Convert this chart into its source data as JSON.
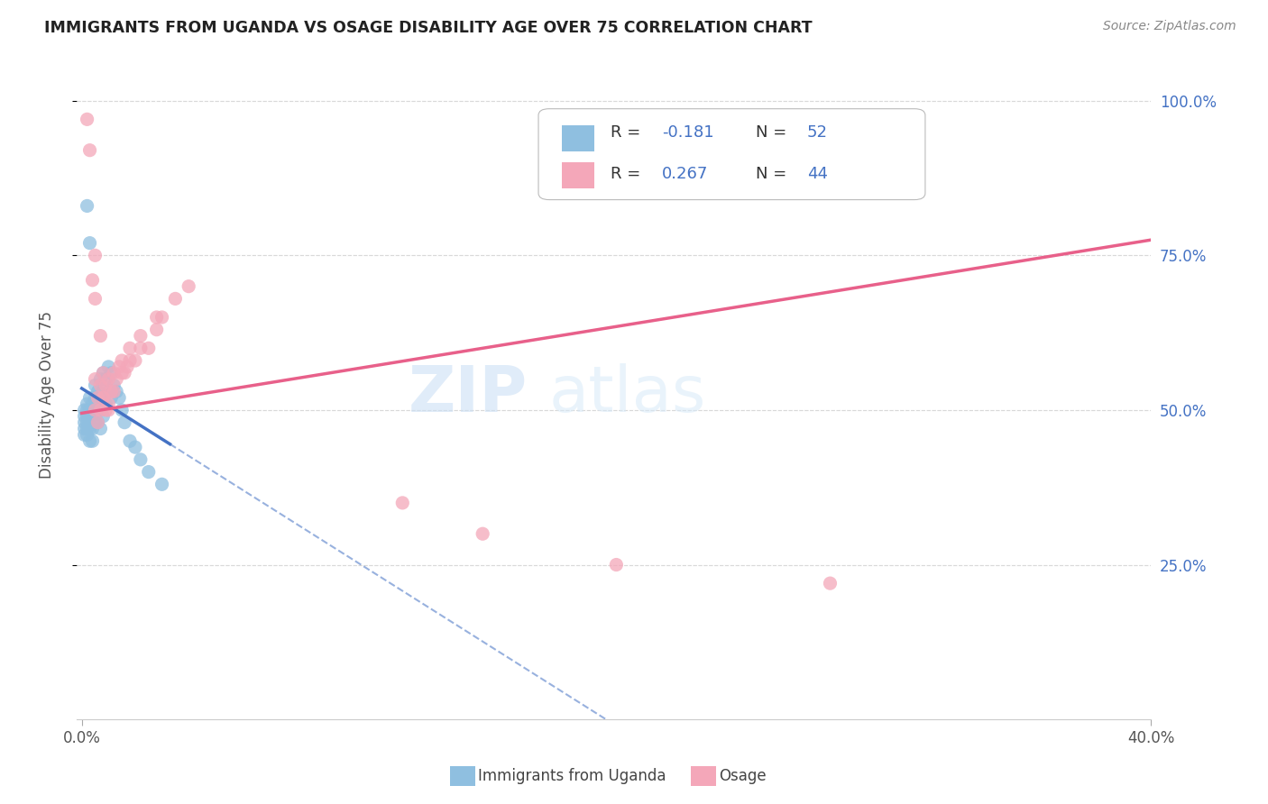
{
  "title": "IMMIGRANTS FROM UGANDA VS OSAGE DISABILITY AGE OVER 75 CORRELATION CHART",
  "source": "Source: ZipAtlas.com",
  "ylabel": "Disability Age Over 75",
  "legend_label1": "Immigrants from Uganda",
  "legend_label2": "Osage",
  "R1": -0.181,
  "N1": 52,
  "R2": 0.267,
  "N2": 44,
  "color_blue": "#8fbfe0",
  "color_pink": "#f4a7b9",
  "line_blue": "#4472c4",
  "line_pink": "#e8608a",
  "background": "#ffffff",
  "grid_color": "#d8d8d8",
  "xlim": [
    0.0,
    0.4
  ],
  "ylim": [
    0.0,
    1.05
  ],
  "blue_x": [
    0.001,
    0.001,
    0.001,
    0.001,
    0.001,
    0.002,
    0.002,
    0.002,
    0.002,
    0.002,
    0.002,
    0.003,
    0.003,
    0.003,
    0.003,
    0.003,
    0.004,
    0.004,
    0.004,
    0.004,
    0.005,
    0.005,
    0.005,
    0.005,
    0.006,
    0.006,
    0.006,
    0.007,
    0.007,
    0.007,
    0.007,
    0.008,
    0.008,
    0.008,
    0.009,
    0.009,
    0.01,
    0.01,
    0.011,
    0.011,
    0.012,
    0.013,
    0.014,
    0.015,
    0.016,
    0.018,
    0.02,
    0.022,
    0.025,
    0.03,
    0.002,
    0.003
  ],
  "blue_y": [
    0.5,
    0.49,
    0.48,
    0.47,
    0.46,
    0.51,
    0.5,
    0.49,
    0.48,
    0.47,
    0.46,
    0.52,
    0.5,
    0.48,
    0.47,
    0.45,
    0.51,
    0.49,
    0.47,
    0.45,
    0.54,
    0.52,
    0.5,
    0.48,
    0.53,
    0.51,
    0.48,
    0.55,
    0.52,
    0.5,
    0.47,
    0.56,
    0.53,
    0.49,
    0.55,
    0.51,
    0.57,
    0.53,
    0.56,
    0.52,
    0.54,
    0.53,
    0.52,
    0.5,
    0.48,
    0.45,
    0.44,
    0.42,
    0.4,
    0.38,
    0.83,
    0.77
  ],
  "pink_x": [
    0.002,
    0.003,
    0.004,
    0.005,
    0.005,
    0.006,
    0.006,
    0.007,
    0.007,
    0.008,
    0.008,
    0.009,
    0.009,
    0.01,
    0.01,
    0.011,
    0.012,
    0.013,
    0.014,
    0.015,
    0.016,
    0.017,
    0.018,
    0.02,
    0.022,
    0.025,
    0.028,
    0.03,
    0.005,
    0.008,
    0.01,
    0.012,
    0.015,
    0.018,
    0.022,
    0.028,
    0.035,
    0.04,
    0.005,
    0.007,
    0.28,
    0.2,
    0.15,
    0.12
  ],
  "pink_y": [
    0.97,
    0.92,
    0.71,
    0.55,
    0.5,
    0.52,
    0.48,
    0.54,
    0.5,
    0.56,
    0.52,
    0.54,
    0.5,
    0.55,
    0.51,
    0.53,
    0.56,
    0.55,
    0.57,
    0.58,
    0.56,
    0.57,
    0.6,
    0.58,
    0.62,
    0.6,
    0.63,
    0.65,
    0.68,
    0.52,
    0.5,
    0.53,
    0.56,
    0.58,
    0.6,
    0.65,
    0.68,
    0.7,
    0.75,
    0.62,
    0.22,
    0.25,
    0.3,
    0.35
  ],
  "figsize": [
    14.06,
    8.92
  ],
  "dpi": 100
}
